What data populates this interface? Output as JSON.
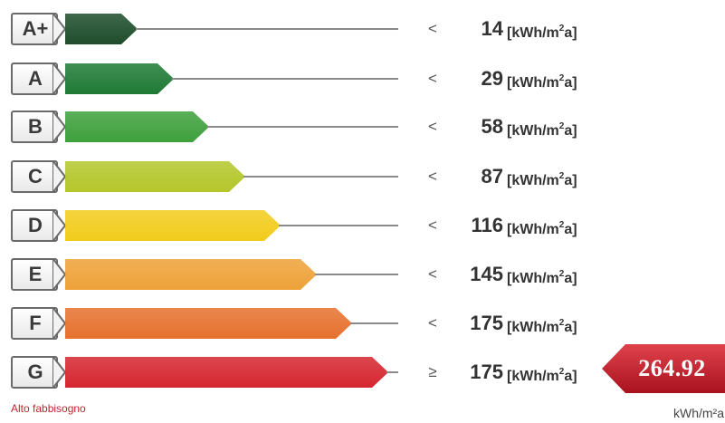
{
  "unit": {
    "base": "[kWh/m",
    "sup": "2",
    "tail": "a]"
  },
  "rows": [
    {
      "letter": "A+",
      "comparator": "<",
      "threshold": "14",
      "color": "#1e4d2b"
    },
    {
      "letter": "A",
      "comparator": "<",
      "threshold": "29",
      "color": "#1f7a35"
    },
    {
      "letter": "B",
      "comparator": "<",
      "threshold": "58",
      "color": "#3ea03c"
    },
    {
      "letter": "C",
      "comparator": "<",
      "threshold": "87",
      "color": "#b4c62a"
    },
    {
      "letter": "D",
      "comparator": "<",
      "threshold": "116",
      "color": "#f2cc1c"
    },
    {
      "letter": "E",
      "comparator": "<",
      "threshold": "145",
      "color": "#eea238"
    },
    {
      "letter": "F",
      "comparator": "<",
      "threshold": "175",
      "color": "#e6712e"
    },
    {
      "letter": "G",
      "comparator": "≥",
      "threshold": "175",
      "color": "#d62630"
    }
  ],
  "indicator": {
    "value": "264.92",
    "unit": "kWh/m²a",
    "color": "#c71f30",
    "class": "G"
  },
  "footer_label": "Alto fabbisogno"
}
